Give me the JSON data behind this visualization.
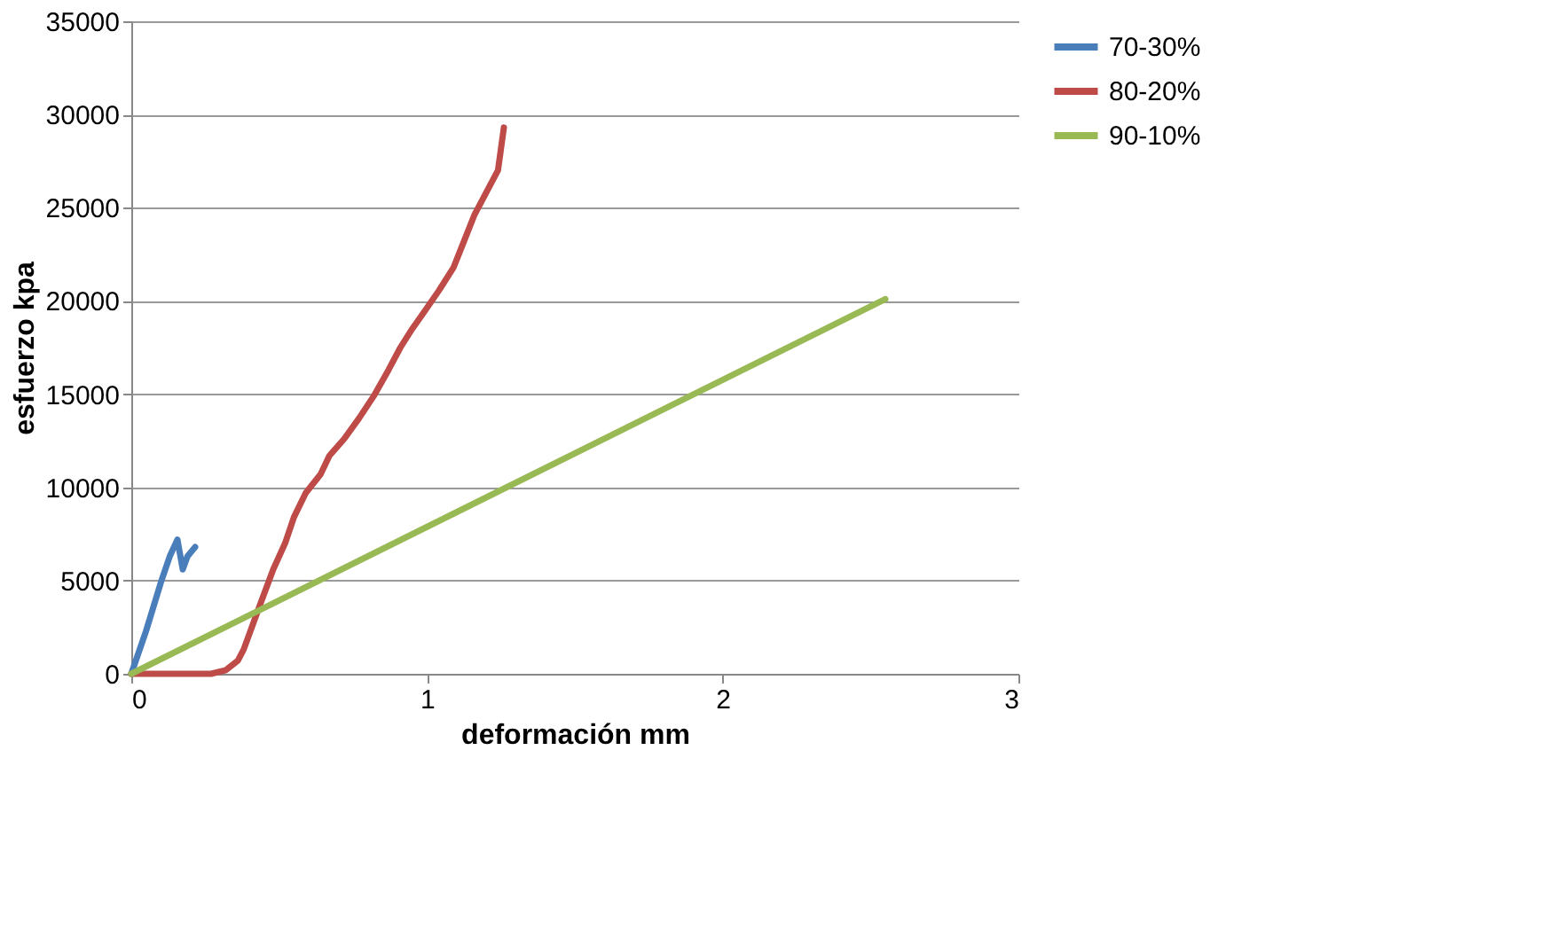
{
  "chart_data": {
    "type": "line",
    "xlabel": "deformación mm",
    "ylabel": "esfuerzo kpa",
    "xlim": [
      0,
      3
    ],
    "xticks": [
      0,
      1,
      2,
      3
    ],
    "ylim": [
      0,
      35000
    ],
    "yticks": [
      0,
      5000,
      10000,
      15000,
      20000,
      25000,
      30000,
      35000
    ],
    "grid": "y",
    "legend": "right",
    "marker": "none",
    "series": [
      {
        "name": "70-30%",
        "color": "#4a7ebb",
        "x": [
          0,
          0.05,
          0.1,
          0.13,
          0.156,
          0.174,
          0.19,
          0.216
        ],
        "values": [
          0,
          2300,
          4900,
          6300,
          7200,
          5600,
          6300,
          6800
        ]
      },
      {
        "name": "80-20%",
        "color": "#be4b48",
        "x": [
          0,
          0.1,
          0.2,
          0.27,
          0.32,
          0.36,
          0.38,
          0.41,
          0.44,
          0.48,
          0.52,
          0.55,
          0.59,
          0.64,
          0.67,
          0.72,
          0.77,
          0.82,
          0.87,
          0.91,
          0.95,
          0.99,
          1.04,
          1.09,
          1.12,
          1.16,
          1.2,
          1.24,
          1.26
        ],
        "values": [
          0,
          0,
          0,
          0,
          200,
          700,
          1300,
          2600,
          3900,
          5600,
          7000,
          8400,
          9700,
          10700,
          11700,
          12600,
          13700,
          14900,
          16300,
          17500,
          18500,
          19400,
          20550,
          21800,
          23000,
          24600,
          25800,
          27000,
          29300
        ]
      },
      {
        "name": "90-10%",
        "color": "#98b954",
        "x": [
          0,
          2.55
        ],
        "values": [
          0,
          20100
        ]
      }
    ]
  }
}
